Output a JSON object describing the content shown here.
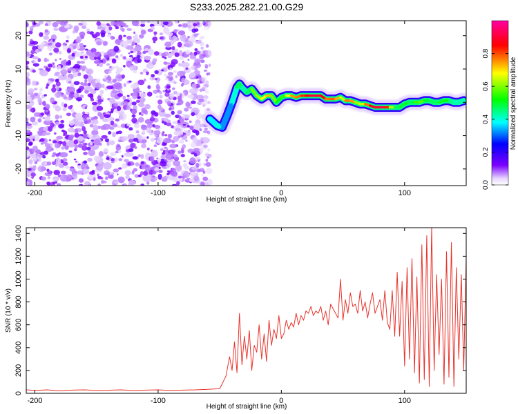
{
  "title": "S233.2025.282.21.00.G29",
  "chart_data": [
    {
      "id": "spectrogram",
      "type": "heatmap",
      "xlabel": "Height of straight line (km)",
      "ylabel": "Frequency (Hz)",
      "xlim": [
        -207,
        150
      ],
      "ylim": [
        -25,
        24.5
      ],
      "xticks": [
        -200,
        -100,
        0,
        100
      ],
      "yticks": [
        -20,
        -10,
        0,
        10,
        20
      ],
      "colorbar": {
        "label": "Normalized spectral amplitude",
        "range": [
          0,
          1
        ],
        "ticks": [
          0.0,
          0.2,
          0.4,
          0.6,
          0.8
        ],
        "tick_labels": [
          "0.0",
          "0.2",
          "0.4",
          "0.6",
          "0.8"
        ],
        "colors": [
          "#ffffff",
          "#e6d5ff",
          "#7b00ff",
          "#0000ff",
          "#00ffff",
          "#00ff00",
          "#ffff00",
          "#ff0000",
          "#ff00a0"
        ]
      },
      "noise_region": {
        "x_range": [
          -207,
          -58
        ],
        "y_range": [
          -25,
          24.5
        ]
      },
      "ridge": {
        "x": [
          -58,
          -52,
          -48,
          -44,
          -40,
          -36,
          -34,
          -32,
          -28,
          -24,
          -20,
          -16,
          -12,
          -8,
          -4,
          0,
          4,
          8,
          12,
          16,
          20,
          24,
          28,
          32,
          36,
          40,
          44,
          48,
          52,
          56,
          60,
          64,
          68,
          72,
          76,
          80,
          84,
          88,
          92,
          96,
          100,
          104,
          108,
          112,
          116,
          120,
          124,
          128,
          132,
          136,
          140,
          144,
          148
        ],
        "y": [
          -5,
          -7,
          -7.5,
          -4,
          0,
          4.5,
          5.5,
          4.5,
          3,
          4,
          2,
          1,
          2,
          2,
          0,
          1.5,
          2,
          2,
          1.5,
          2,
          2,
          2,
          2,
          2,
          1,
          1,
          1,
          1.5,
          0.5,
          0.5,
          0,
          -0.5,
          -0.5,
          -1,
          -1.5,
          -1.5,
          -1.5,
          -1.5,
          -1.5,
          -1.5,
          -0.5,
          0,
          0,
          0,
          0.5,
          0.5,
          0,
          0,
          0.5,
          0.5,
          0,
          0,
          0.5
        ],
        "amplitude": [
          0.3,
          0.45,
          0.35,
          0.3,
          0.35,
          0.45,
          0.5,
          0.45,
          0.4,
          0.55,
          0.65,
          0.6,
          0.75,
          0.7,
          0.5,
          0.55,
          0.55,
          0.8,
          0.7,
          0.85,
          0.8,
          0.9,
          0.92,
          0.88,
          0.85,
          0.7,
          0.88,
          0.6,
          0.7,
          0.85,
          0.65,
          0.6,
          0.7,
          0.85,
          0.9,
          0.9,
          0.92,
          0.75,
          0.5,
          0.45,
          0.55,
          0.45,
          0.5,
          0.6,
          0.55,
          0.45,
          0.5,
          0.45,
          0.55,
          0.5,
          0.4,
          0.45,
          0.4
        ]
      }
    },
    {
      "id": "snr",
      "type": "line",
      "xlabel": "Height of straight line (km)",
      "ylabel": "SNR (10 * v/v)",
      "xlim": [
        -207,
        150
      ],
      "ylim": [
        0,
        1450
      ],
      "xticks": [
        -200,
        -100,
        0,
        100
      ],
      "yticks": [
        0,
        200,
        400,
        600,
        800,
        1000,
        1200,
        1400
      ],
      "series": [
        {
          "name": "SNR",
          "color": "#e8322a",
          "x": [
            -207,
            -200,
            -190,
            -180,
            -170,
            -160,
            -150,
            -140,
            -130,
            -120,
            -110,
            -100,
            -90,
            -80,
            -70,
            -60,
            -50,
            -45,
            -42,
            -40,
            -38,
            -36,
            -34,
            -32,
            -30,
            -28,
            -26,
            -24,
            -22,
            -20,
            -18,
            -16,
            -14,
            -12,
            -10,
            -8,
            -6,
            -4,
            -2,
            0,
            2,
            4,
            6,
            8,
            10,
            12,
            14,
            16,
            18,
            20,
            22,
            24,
            26,
            28,
            30,
            32,
            34,
            36,
            38,
            40,
            42,
            44,
            46,
            48,
            50,
            52,
            54,
            56,
            58,
            60,
            62,
            64,
            66,
            68,
            70,
            72,
            74,
            76,
            78,
            80,
            82,
            84,
            86,
            88,
            90,
            92,
            94,
            96,
            98,
            100,
            102,
            104,
            106,
            108,
            110,
            112,
            114,
            116,
            118,
            120,
            122,
            124,
            126,
            128,
            130,
            132,
            134,
            136,
            138,
            140,
            142,
            144,
            146,
            148,
            150
          ],
          "values": [
            30,
            25,
            30,
            22,
            28,
            30,
            25,
            27,
            30,
            24,
            28,
            30,
            25,
            28,
            30,
            35,
            40,
            150,
            320,
            200,
            450,
            180,
            700,
            250,
            500,
            300,
            550,
            200,
            420,
            360,
            600,
            300,
            520,
            280,
            640,
            420,
            560,
            480,
            680,
            480,
            520,
            640,
            560,
            620,
            580,
            700,
            600,
            680,
            640,
            720,
            700,
            760,
            680,
            720,
            700,
            760,
            640,
            720,
            600,
            780,
            740,
            700,
            660,
            1000,
            640,
            820,
            700,
            880,
            760,
            780,
            700,
            900,
            720,
            800,
            660,
            780,
            880,
            700,
            760,
            820,
            640,
            900,
            620,
            560,
            900,
            500,
            1060,
            500,
            980,
            240,
            1100,
            300,
            1180,
            180,
            1020,
            90,
            1300,
            120,
            1380,
            60,
            1460,
            200,
            1040,
            340,
            1000,
            80,
            1240,
            140,
            1320,
            60,
            1100,
            300,
            1040,
            200,
            1200
          ]
        }
      ]
    }
  ]
}
